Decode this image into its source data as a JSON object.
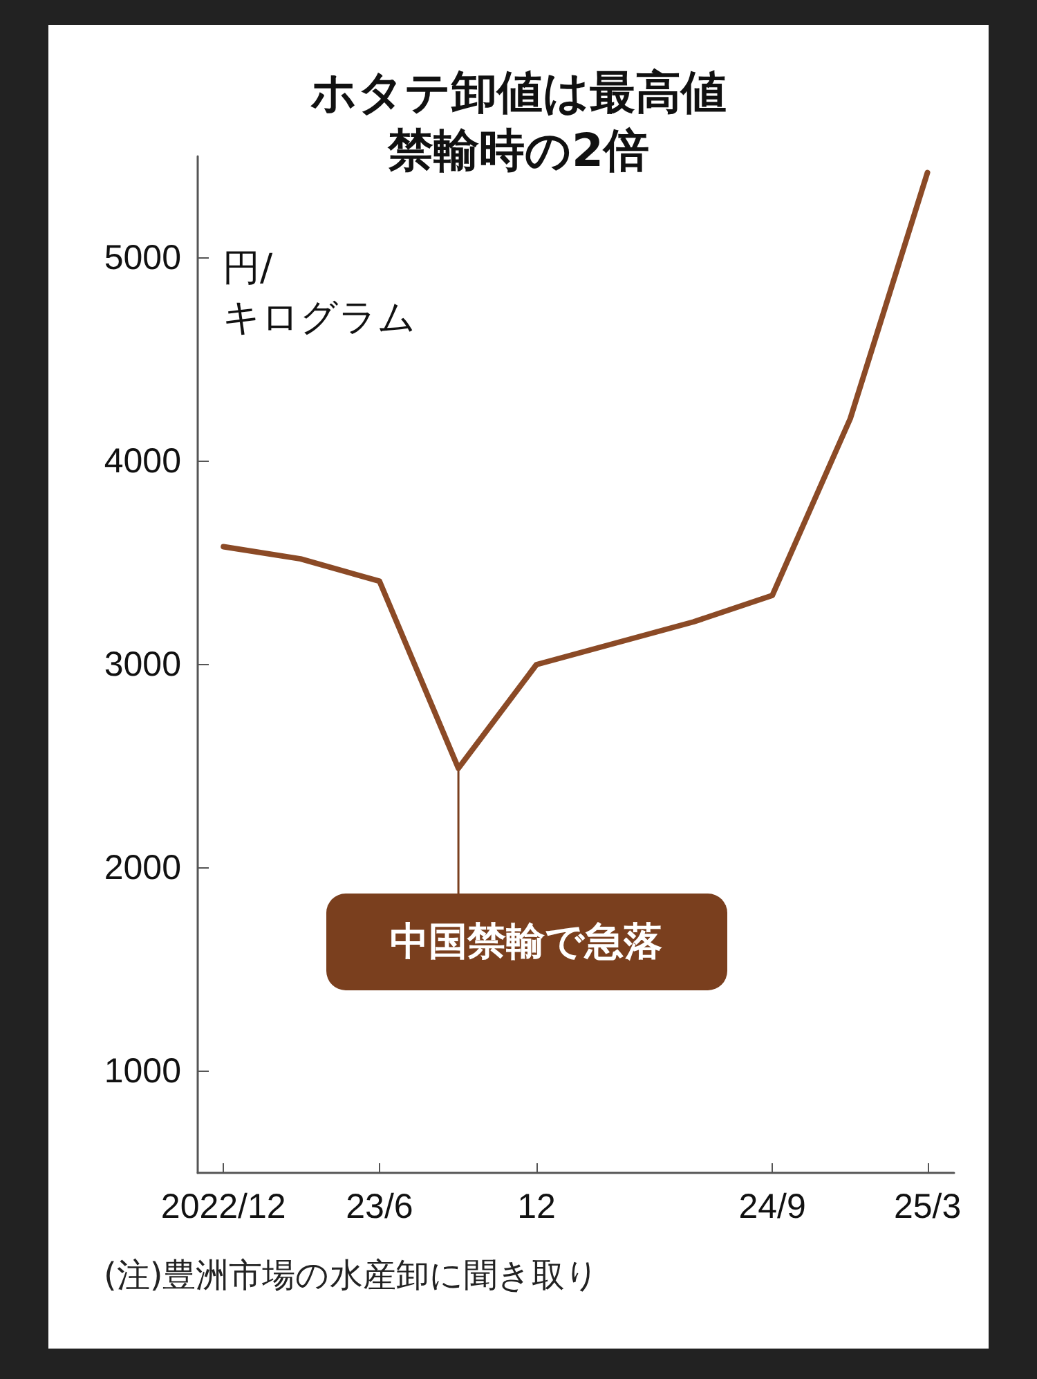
{
  "chart_data": {
    "type": "line",
    "title": "ホタテ卸値は最高値禁輸時の2倍",
    "ylabel": "円/\nキログラム",
    "x": [
      "2022-12",
      "2023-03",
      "2023-06",
      "2023-09",
      "2023-12",
      "2024-06",
      "2024-09",
      "2024-12",
      "2025-03"
    ],
    "series": [
      {
        "color": "#8b4a26",
        "values": [
          3580,
          3520,
          3410,
          2490,
          3000,
          3210,
          3340,
          4210,
          5420
        ]
      }
    ],
    "xlim": [
      "2022-11",
      "2025-04"
    ],
    "xticks": [
      {
        "value": "2022-12",
        "label": "2022/12"
      },
      {
        "value": "2023-06",
        "label": "23/6"
      },
      {
        "value": "2023-12",
        "label": "12"
      },
      {
        "value": "2024-09",
        "label": "24/9"
      },
      {
        "value": "2025-03",
        "label": "25/3"
      }
    ],
    "ylim": [
      500,
      5500
    ],
    "yticks": [
      1000,
      2000,
      3000,
      4000,
      5000
    ],
    "annotations": [
      {
        "text": "中国禁輸で急落",
        "x": "2023-09",
        "y": 2490
      },
      "(注)豊洲市場の水産卸に聞き取り"
    ],
    "grid": false,
    "marker": "none",
    "line_style": "solid"
  }
}
